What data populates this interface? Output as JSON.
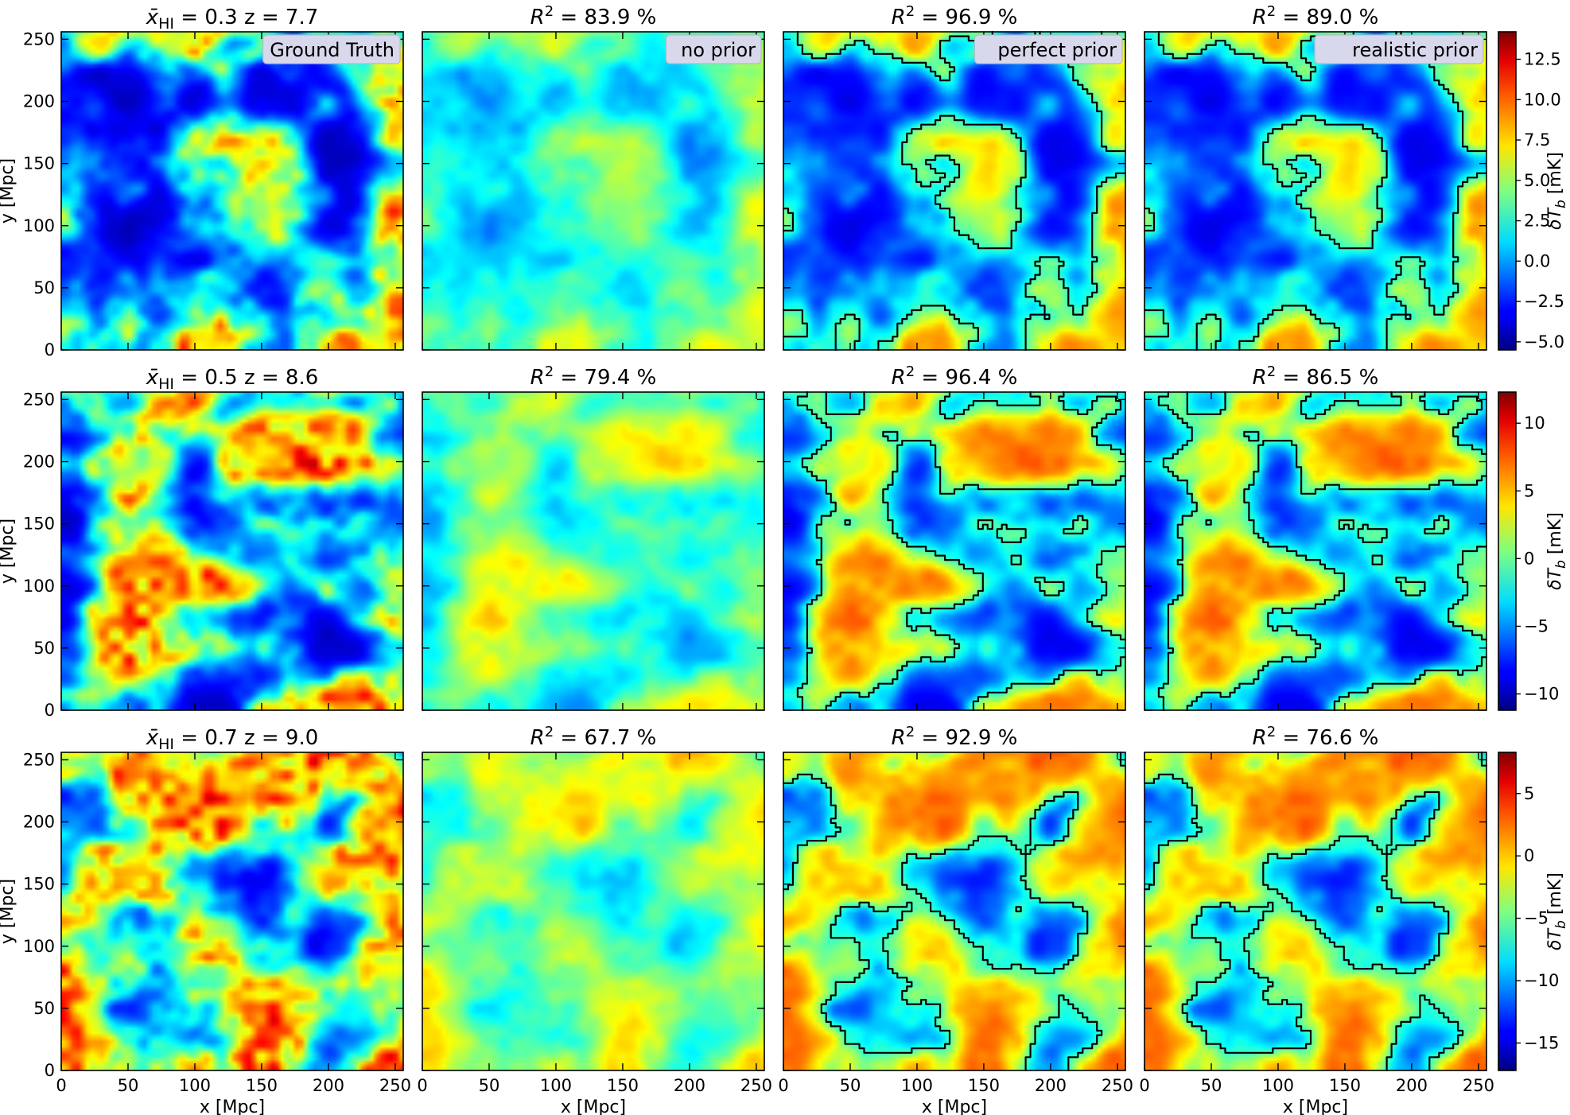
{
  "chart_data": {
    "type": "heatmap",
    "figure_description": "3x4 grid of 21-cm brightness temperature maps; each row shares one colorbar",
    "x_unit_label": "x [Mpc]",
    "y_unit_label": "y [Mpc]",
    "xlim": [
      0,
      256
    ],
    "ylim": [
      0,
      256
    ],
    "x_ticks": [
      "0",
      "50",
      "100",
      "150",
      "200",
      "250"
    ],
    "y_ticks": [
      "0",
      "50",
      "100",
      "150",
      "200",
      "250"
    ],
    "colormap": "jet",
    "columns": [
      {
        "id": "ground_truth",
        "legend": "Ground Truth",
        "contours": false
      },
      {
        "id": "no_prior",
        "legend": "no prior",
        "contours": false
      },
      {
        "id": "perfect_prior",
        "legend": "perfect prior",
        "contours": true
      },
      {
        "id": "realistic_prior",
        "legend": "realistic prior",
        "contours": true
      }
    ],
    "rows": [
      {
        "x_HI": "0.3",
        "z": "7.7",
        "titles": [
          "x̄HI = 0.3    z = 7.7",
          "R2 = 83.9 %",
          "R2 = 96.9 %",
          "R2 = 89.0 %"
        ],
        "r2_percent": [
          83.9,
          96.9,
          89.0
        ],
        "colorbar": {
          "label": "δTb [mK]",
          "range": [
            -5.5,
            14.2
          ],
          "ticks": [
            "12.5",
            "10.0",
            "7.5",
            "5.0",
            "2.5",
            "0.0",
            "−2.5",
            "−5.0"
          ],
          "tick_values": [
            12.5,
            10.0,
            7.5,
            5.0,
            2.5,
            0.0,
            -2.5,
            -5.0
          ]
        },
        "neutral_fraction_target": 0.3
      },
      {
        "x_HI": "0.5",
        "z": "8.6",
        "titles": [
          "x̄HI = 0.5    z = 8.6",
          "R2 = 79.4 %",
          "R2 = 96.4 %",
          "R2 = 86.5 %"
        ],
        "r2_percent": [
          79.4,
          96.4,
          86.5
        ],
        "colorbar": {
          "label": "δTb [mK]",
          "range": [
            -11.2,
            12.3
          ],
          "ticks": [
            "10",
            "5",
            "0",
            "−5",
            "−10"
          ],
          "tick_values": [
            10,
            5,
            0,
            -5,
            -10
          ]
        },
        "neutral_fraction_target": 0.5
      },
      {
        "x_HI": "0.7",
        "z": "9.0",
        "titles": [
          "x̄HI = 0.7    z = 9.0",
          "R2 = 67.7 %",
          "R2 = 92.9 %",
          "R2 = 76.6 %"
        ],
        "r2_percent": [
          67.7,
          92.9,
          76.6
        ],
        "colorbar": {
          "label": "δTb [mK]",
          "range": [
            -17.2,
            8.3
          ],
          "ticks": [
            "5",
            "0",
            "−5",
            "−10",
            "−15"
          ],
          "tick_values": [
            5,
            0,
            -5,
            -10,
            -15
          ]
        },
        "neutral_fraction_target": 0.7
      }
    ]
  }
}
